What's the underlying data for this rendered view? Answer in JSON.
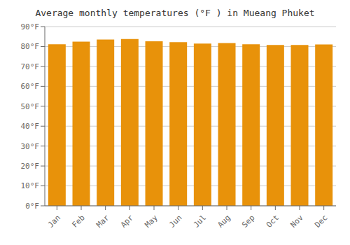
{
  "chart_data": {
    "type": "bar",
    "title": "Average monthly temperatures (°F ) in Mueang Phuket",
    "categories": [
      "Jan",
      "Feb",
      "Mar",
      "Apr",
      "May",
      "Jun",
      "Jul",
      "Aug",
      "Sep",
      "Oct",
      "Nov",
      "Dec"
    ],
    "values": [
      81.1,
      82.4,
      83.5,
      83.8,
      82.6,
      82.2,
      81.5,
      81.7,
      81.1,
      80.8,
      80.8,
      81.0
    ],
    "color": "#E8920A",
    "ylim": [
      0,
      90
    ],
    "yticks": [
      {
        "value": 0,
        "label": "0°F"
      },
      {
        "value": 10,
        "label": "10°F"
      },
      {
        "value": 20,
        "label": "20°F"
      },
      {
        "value": 30,
        "label": "30°F"
      },
      {
        "value": 40,
        "label": "40°F"
      },
      {
        "value": 50,
        "label": "50°F"
      },
      {
        "value": 60,
        "label": "60°F"
      },
      {
        "value": 70,
        "label": "70°F"
      },
      {
        "value": 80,
        "label": "80°F"
      },
      {
        "value": 90,
        "label": "90°F"
      }
    ],
    "grid": true
  }
}
